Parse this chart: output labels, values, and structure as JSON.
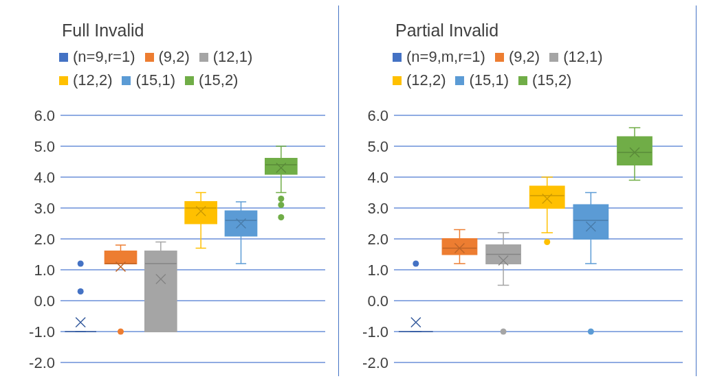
{
  "chart_data": [
    {
      "type": "box",
      "title": "Full Invalid",
      "categories": [
        null
      ],
      "ylim": [
        -2,
        6
      ],
      "yticks": [
        {
          "value": -2,
          "label": "-2.0"
        },
        {
          "value": -1,
          "label": "-1.0"
        },
        {
          "value": 0,
          "label": "0.0"
        },
        {
          "value": 1,
          "label": "1.0"
        },
        {
          "value": 2,
          "label": "2.0"
        },
        {
          "value": 3,
          "label": "3.0"
        },
        {
          "value": 4,
          "label": "4.0"
        },
        {
          "value": 5,
          "label": "5.0"
        },
        {
          "value": 6,
          "label": "6.0"
        }
      ],
      "grid": "y",
      "legend": "top left",
      "tick_labels": "y",
      "series": [
        {
          "name": "(n=9,r=1)",
          "color": "#4472c4",
          "boxes": [
            {
              "low": -1,
              "q1": -1,
              "median": -1,
              "q3": -1,
              "high": -1,
              "mean": -0.7,
              "outliers": [
                1.2,
                0.3
              ]
            }
          ]
        },
        {
          "name": "(9,2)",
          "color": "#ed7d31",
          "boxes": [
            {
              "low": 1.2,
              "q1": 1.2,
              "median": 1.2,
              "q3": 1.6,
              "high": 1.8,
              "mean": 1.1,
              "outliers": [
                -1
              ]
            }
          ]
        },
        {
          "name": "(12,1)",
          "color": "#a5a5a5",
          "boxes": [
            {
              "low": -1,
              "q1": -1,
              "median": 1.2,
              "q3": 1.6,
              "high": 1.9,
              "mean": 0.7
            }
          ]
        },
        {
          "name": "(12,2)",
          "color": "#ffc000",
          "boxes": [
            {
              "low": 1.7,
              "q1": 2.5,
              "median": 3.0,
              "q3": 3.2,
              "high": 3.5,
              "mean": 2.9
            }
          ]
        },
        {
          "name": "(15,1)",
          "color": "#5b9bd5",
          "boxes": [
            {
              "low": 1.2,
              "q1": 2.1,
              "median": 2.6,
              "q3": 2.9,
              "high": 3.2,
              "mean": 2.5
            }
          ]
        },
        {
          "name": "(15,2)",
          "color": "#70ad47",
          "boxes": [
            {
              "low": 3.5,
              "q1": 4.1,
              "median": 4.4,
              "q3": 4.6,
              "high": 5.0,
              "mean": 4.3,
              "outliers": [
                3.3,
                3.1,
                2.7
              ]
            }
          ]
        }
      ]
    },
    {
      "type": "box",
      "title": "Partial Invalid",
      "categories": [
        null
      ],
      "ylim": [
        -2,
        6
      ],
      "yticks": [
        {
          "value": -2,
          "label": "-2.0"
        },
        {
          "value": -1,
          "label": "-1.0"
        },
        {
          "value": 0,
          "label": "0.0"
        },
        {
          "value": 1,
          "label": "1.0"
        },
        {
          "value": 2,
          "label": "2.0"
        },
        {
          "value": 3,
          "label": "3.0"
        },
        {
          "value": 4,
          "label": "4.0"
        },
        {
          "value": 5,
          "label": "5.0"
        },
        {
          "value": 6,
          "label": "6.0"
        }
      ],
      "grid": "y",
      "legend": "top left",
      "tick_labels": "y",
      "series": [
        {
          "name": "(n=9,m,r=1)",
          "color": "#4472c4",
          "boxes": [
            {
              "low": -1,
              "q1": -1,
              "median": -1,
              "q3": -1,
              "high": -1,
              "mean": -0.7,
              "outliers": [
                1.2
              ]
            }
          ]
        },
        {
          "name": "(9,2)",
          "color": "#ed7d31",
          "boxes": [
            {
              "low": 1.2,
              "q1": 1.5,
              "median": 1.7,
              "q3": 2.0,
              "high": 2.3,
              "mean": 1.7
            }
          ]
        },
        {
          "name": "(12,1)",
          "color": "#a5a5a5",
          "boxes": [
            {
              "low": 0.5,
              "q1": 1.2,
              "median": 1.5,
              "q3": 1.8,
              "high": 2.2,
              "mean": 1.3,
              "outliers": [
                -1
              ]
            }
          ]
        },
        {
          "name": "(12,2)",
          "color": "#ffc000",
          "boxes": [
            {
              "low": 2.2,
              "q1": 3.0,
              "median": 3.4,
              "q3": 3.7,
              "high": 4.0,
              "mean": 3.3,
              "outliers": [
                1.9
              ]
            }
          ]
        },
        {
          "name": "(15,1)",
          "color": "#5b9bd5",
          "boxes": [
            {
              "low": 1.2,
              "q1": 2.0,
              "median": 2.6,
              "q3": 3.1,
              "high": 3.5,
              "mean": 2.4,
              "outliers": [
                -1
              ]
            }
          ]
        },
        {
          "name": "(15,2)",
          "color": "#70ad47",
          "boxes": [
            {
              "low": 3.9,
              "q1": 4.4,
              "median": 4.8,
              "q3": 5.3,
              "high": 5.6,
              "mean": 4.8
            }
          ]
        }
      ]
    }
  ]
}
